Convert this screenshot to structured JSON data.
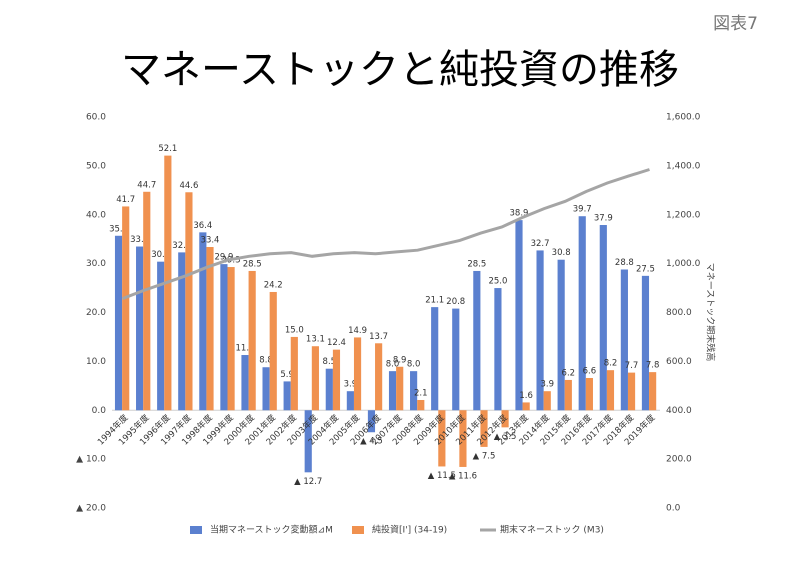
{
  "chart_data": {
    "type": "bar",
    "corner_label": "図表7",
    "title": "マネーストックと純投資の推移",
    "y2_label": "マネーストック期末残高",
    "categories": [
      "1994年度",
      "1995年度",
      "1996年度",
      "1997年度",
      "1998年度",
      "1999年度",
      "2000年度",
      "2001年度",
      "2002年度",
      "2003年度",
      "2004年度",
      "2005年度",
      "2006年度",
      "2007年度",
      "2008年度",
      "2009年度",
      "2010年度",
      "2011年度",
      "2012年度",
      "2013年度",
      "2014年度",
      "2015年度",
      "2016年度",
      "2017年度",
      "2018年度",
      "2019年度"
    ],
    "series": [
      {
        "name": "当期マネーストック変動額⊿M",
        "color": "#5b80cf",
        "type": "bar",
        "values": [
          35.7,
          33.5,
          30.4,
          32.3,
          36.4,
          29.9,
          11.3,
          8.8,
          5.9,
          -12.7,
          8.5,
          3.9,
          -4.5,
          8.0,
          8.0,
          21.1,
          20.8,
          28.5,
          25.0,
          38.9,
          32.7,
          30.8,
          39.7,
          37.9,
          28.8,
          27.5
        ],
        "value_labels": [
          "35.7",
          "33.5",
          "30.4",
          "32.3",
          "36.4",
          "29.9",
          "11.3",
          "8.8",
          "5.9",
          "▲ 12.7",
          "8.5",
          "3.9",
          "▲ 4.5",
          "8.0",
          "8.0",
          "21.1",
          "20.8",
          "28.5",
          "25.0",
          "38.9",
          "32.7",
          "30.8",
          "39.7",
          "37.9",
          "28.8",
          "27.5"
        ]
      },
      {
        "name": "純投資[I'] (34-19)",
        "color": "#f0914f",
        "type": "bar",
        "values": [
          41.7,
          44.7,
          52.1,
          44.6,
          33.4,
          29.3,
          28.5,
          24.2,
          15.0,
          13.1,
          12.4,
          14.9,
          13.7,
          8.9,
          2.1,
          -11.5,
          -11.6,
          -7.5,
          -3.5,
          1.6,
          3.9,
          6.2,
          6.6,
          8.2,
          7.7,
          7.8
        ],
        "value_labels": [
          "41.7",
          "44.7",
          "52.1",
          "44.6",
          "33.4",
          "29.3",
          "28.5",
          "24.2",
          "15.0",
          "13.1",
          "12.4",
          "14.9",
          "13.7",
          "8.9",
          "2.1",
          "▲ 11.5",
          "▲ 11.6",
          "▲ 7.5",
          "▲ 3.5",
          "1.6",
          "3.9",
          "6.2",
          "6.6",
          "8.2",
          "7.7",
          "7.8"
        ]
      },
      {
        "name": "期末マネーストック (M3)",
        "color": "#a5a5a5",
        "type": "line",
        "axis": "y2",
        "values": [
          857,
          890,
          920,
          950,
          985,
          1015,
          1030,
          1040,
          1045,
          1030,
          1040,
          1045,
          1040,
          1048,
          1055,
          1075,
          1095,
          1125,
          1150,
          1190,
          1225,
          1255,
          1295,
          1330,
          1358,
          1385
        ]
      }
    ],
    "ylim": [
      -20,
      60
    ],
    "yticks": [
      {
        "value": 60,
        "label": "60.0"
      },
      {
        "value": 50,
        "label": "50.0"
      },
      {
        "value": 40,
        "label": "40.0"
      },
      {
        "value": 30,
        "label": "30.0"
      },
      {
        "value": 20,
        "label": "20.0"
      },
      {
        "value": 10,
        "label": "10.0"
      },
      {
        "value": 0,
        "label": "0.0"
      },
      {
        "value": -10,
        "label": "▲ 10.0"
      },
      {
        "value": -20,
        "label": "▲ 20.0"
      }
    ],
    "y2lim": [
      0,
      1600
    ],
    "y2ticks": [
      {
        "value": 1600,
        "label": "1,600.0"
      },
      {
        "value": 1400,
        "label": "1,400.0"
      },
      {
        "value": 1200,
        "label": "1,200.0"
      },
      {
        "value": 1000,
        "label": "1,000.0"
      },
      {
        "value": 800,
        "label": "800.0"
      },
      {
        "value": 600,
        "label": "600.0"
      },
      {
        "value": 400,
        "label": "400.0"
      },
      {
        "value": 200,
        "label": "200.0"
      },
      {
        "value": 0,
        "label": "0.0"
      }
    ],
    "legend": "bottom"
  }
}
